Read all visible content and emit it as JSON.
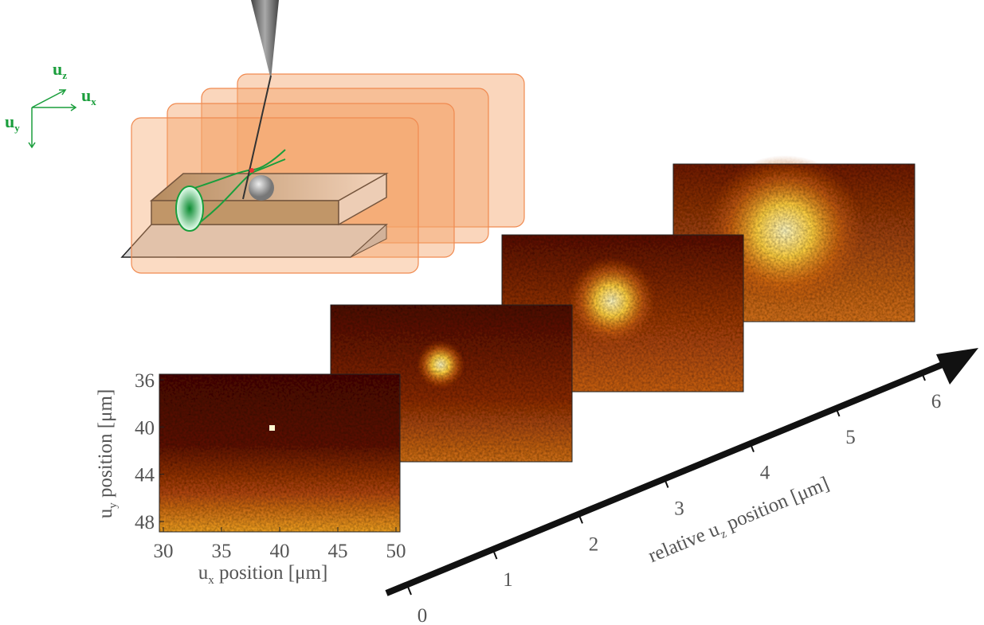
{
  "schematic": {
    "axis_labels": [
      {
        "symbol": "u",
        "sub": "z"
      },
      {
        "symbol": "u",
        "sub": "x"
      },
      {
        "symbol": "u",
        "sub": "y"
      }
    ]
  },
  "image_axes": {
    "x_label": {
      "symbol": "u",
      "sub": "x",
      "text": " position [μm]"
    },
    "y_label": {
      "symbol": "u",
      "sub": "y",
      "text": " position [μm]"
    },
    "x_ticks": [
      30,
      35,
      40,
      45,
      50
    ],
    "y_ticks": [
      36,
      40,
      44,
      48
    ]
  },
  "z_axis": {
    "label": {
      "prefix": "relative ",
      "symbol": "u",
      "sub": "z",
      "text": " position [μm]"
    },
    "ticks": [
      0,
      1,
      2,
      3,
      4,
      5,
      6
    ]
  }
}
